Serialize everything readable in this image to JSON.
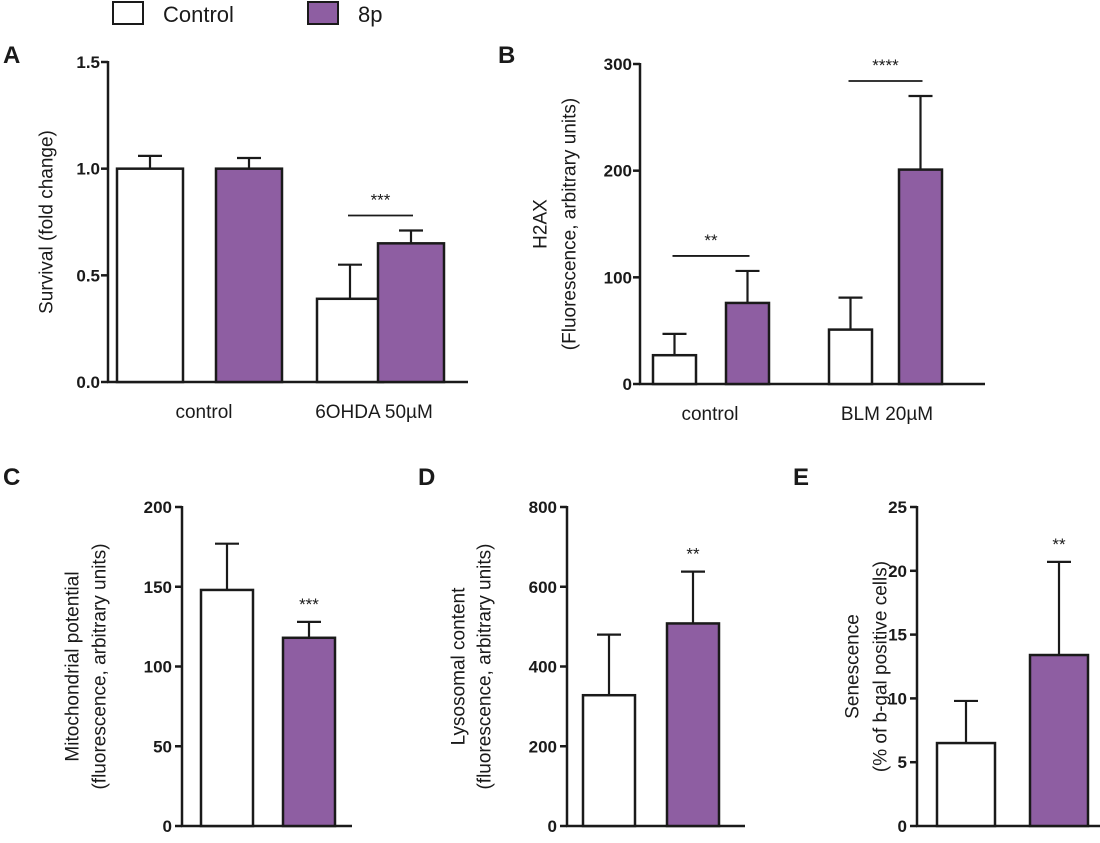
{
  "legend": [
    {
      "label": "Control",
      "color": "#ffffff"
    },
    {
      "label": "8p",
      "color": "#8e5ea2"
    }
  ],
  "colors": {
    "treated": "#8e5ea2",
    "control": "#ffffff",
    "axis": "#1a1a1a"
  },
  "chart_data": [
    {
      "panel": "A",
      "type": "bar",
      "ylabel": [
        "Survival (fold  change)"
      ],
      "ylim": [
        0,
        1.5
      ],
      "yticks": [
        "0.0",
        "0.5",
        "1.0",
        "1.5"
      ],
      "ytick_values": [
        0,
        0.5,
        1.0,
        1.5
      ],
      "categories": [
        "control",
        "6OHDA 50µM"
      ],
      "series": [
        {
          "name": "Control",
          "values": [
            1.0,
            0.39
          ],
          "errors": [
            0.06,
            0.16
          ]
        },
        {
          "name": "8p",
          "values": [
            1.0,
            0.65
          ],
          "errors": [
            0.05,
            0.06
          ]
        }
      ],
      "significance": [
        {
          "category": 1,
          "label": "***",
          "bracket": true
        }
      ]
    },
    {
      "panel": "B",
      "type": "bar",
      "ylabel": [
        "H2AX",
        "(Fluorescence, arbitrary units)"
      ],
      "ylim": [
        0,
        300
      ],
      "yticks": [
        "0",
        "100",
        "200",
        "300"
      ],
      "ytick_values": [
        0,
        100,
        200,
        300
      ],
      "categories": [
        "control",
        "BLM 20µM"
      ],
      "series": [
        {
          "name": "Control",
          "values": [
            27,
            51
          ],
          "errors": [
            20,
            30
          ]
        },
        {
          "name": "8p",
          "values": [
            76,
            201
          ],
          "errors": [
            30,
            69
          ]
        }
      ],
      "significance": [
        {
          "category": 0,
          "label": "**",
          "bracket": true
        },
        {
          "category": 1,
          "label": "****",
          "bracket": true
        }
      ]
    },
    {
      "panel": "C",
      "type": "bar",
      "ylabel": [
        "Mitochondrial potential",
        "(fluorescence, arbitrary units)"
      ],
      "ylim": [
        0,
        200
      ],
      "yticks": [
        "0",
        "50",
        "100",
        "150",
        "200"
      ],
      "ytick_values": [
        0,
        50,
        100,
        150,
        200
      ],
      "categories": [
        ""
      ],
      "series": [
        {
          "name": "Control",
          "values": [
            148
          ],
          "errors": [
            29
          ]
        },
        {
          "name": "8p",
          "values": [
            118
          ],
          "errors": [
            10
          ]
        }
      ],
      "significance": [
        {
          "category": 0,
          "label": "***",
          "bracket": false
        }
      ]
    },
    {
      "panel": "D",
      "type": "bar",
      "ylabel": [
        "Lysosomal content",
        "(fluorescence, arbitrary units)"
      ],
      "ylim": [
        0,
        800
      ],
      "yticks": [
        "0",
        "200",
        "400",
        "600",
        "800"
      ],
      "ytick_values": [
        0,
        200,
        400,
        600,
        800
      ],
      "categories": [
        ""
      ],
      "series": [
        {
          "name": "Control",
          "values": [
            328
          ],
          "errors": [
            152
          ]
        },
        {
          "name": "8p",
          "values": [
            508
          ],
          "errors": [
            130
          ]
        }
      ],
      "significance": [
        {
          "category": 0,
          "label": "**",
          "bracket": false
        }
      ]
    },
    {
      "panel": "E",
      "type": "bar",
      "ylabel": [
        "Senescence",
        "(% of b-gal positive cells)"
      ],
      "ylim": [
        0,
        25
      ],
      "yticks": [
        "0",
        "5",
        "10",
        "15",
        "20",
        "25"
      ],
      "ytick_values": [
        0,
        5,
        10,
        15,
        20,
        25
      ],
      "categories": [
        ""
      ],
      "series": [
        {
          "name": "Control",
          "values": [
            6.5
          ],
          "errors": [
            3.3
          ]
        },
        {
          "name": "8p",
          "values": [
            13.4
          ],
          "errors": [
            7.3
          ]
        }
      ],
      "significance": [
        {
          "category": 0,
          "label": "**",
          "bracket": false
        }
      ]
    }
  ]
}
